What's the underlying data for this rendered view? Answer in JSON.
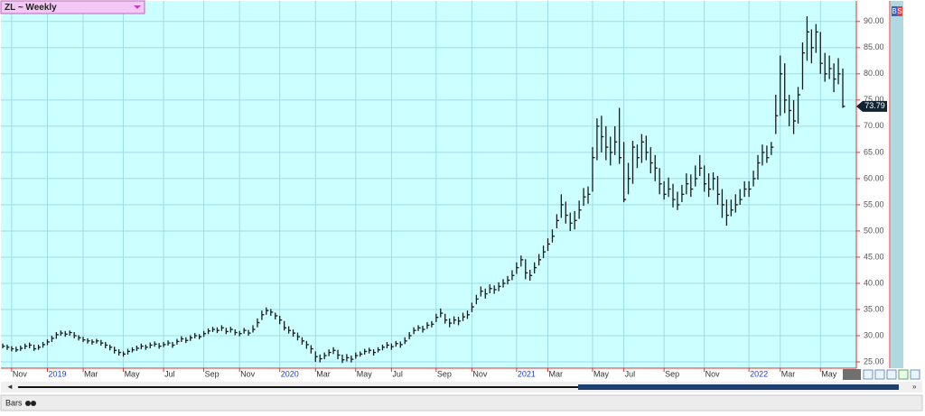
{
  "ui": {
    "symbol": "ZL ~ Weekly",
    "buy": "B",
    "sell": "S",
    "style": "Bars"
  },
  "chart_data": {
    "type": "ohlc",
    "grid": true,
    "color": "#1a1a1a",
    "ylim": [
      23.8,
      94.1
    ],
    "yticks": [
      {
        "value": 25,
        "label": "25.00"
      },
      {
        "value": 30,
        "label": "30.00"
      },
      {
        "value": 35,
        "label": "35.00"
      },
      {
        "value": 40,
        "label": "40.00"
      },
      {
        "value": 45,
        "label": "45.00"
      },
      {
        "value": 50,
        "label": "50.00"
      },
      {
        "value": 55,
        "label": "55.00"
      },
      {
        "value": 60,
        "label": "60.00"
      },
      {
        "value": 65,
        "label": "65.00"
      },
      {
        "value": 70,
        "label": "70.00"
      },
      {
        "value": 75,
        "label": "75.00"
      },
      {
        "value": 80,
        "label": "80.00"
      },
      {
        "value": 85,
        "label": "85.00"
      },
      {
        "value": 90,
        "label": "90.00"
      }
    ],
    "categories": [
      null,
      null,
      "Nov",
      null,
      null,
      null,
      null,
      null,
      null,
      null,
      "2019",
      null,
      null,
      null,
      null,
      null,
      null,
      null,
      "Mar",
      null,
      null,
      null,
      null,
      null,
      null,
      null,
      null,
      "May",
      null,
      null,
      null,
      null,
      null,
      null,
      null,
      null,
      "Jul",
      null,
      null,
      null,
      null,
      null,
      null,
      null,
      null,
      "Sep",
      null,
      null,
      null,
      null,
      null,
      null,
      null,
      "Nov",
      null,
      null,
      null,
      null,
      null,
      null,
      null,
      null,
      "2020",
      null,
      null,
      null,
      null,
      null,
      null,
      null,
      "Mar",
      null,
      null,
      null,
      null,
      null,
      null,
      null,
      null,
      "May",
      null,
      null,
      null,
      null,
      null,
      null,
      null,
      "Jul",
      null,
      null,
      null,
      null,
      null,
      null,
      null,
      null,
      null,
      "Sep",
      null,
      null,
      null,
      null,
      null,
      null,
      null,
      "Nov",
      null,
      null,
      null,
      null,
      null,
      null,
      null,
      null,
      null,
      "2021",
      null,
      null,
      null,
      null,
      null,
      null,
      "Mar",
      null,
      null,
      null,
      null,
      null,
      null,
      null,
      null,
      null,
      "May",
      null,
      null,
      null,
      null,
      null,
      null,
      "Jul",
      null,
      null,
      null,
      null,
      null,
      null,
      null,
      null,
      "Sep",
      null,
      null,
      null,
      null,
      null,
      null,
      null,
      null,
      "Nov",
      null,
      null,
      null,
      null,
      null,
      null,
      null,
      null,
      null,
      "2022",
      null,
      null,
      null,
      null,
      null,
      null,
      "Mar",
      null,
      null,
      null,
      null,
      null,
      null,
      null,
      null,
      "May",
      null,
      null,
      null,
      null,
      null
    ],
    "high": [
      28.5,
      28.3,
      28,
      27.9,
      28.1,
      28.5,
      28.7,
      28.3,
      28.3,
      28.8,
      29.3,
      30,
      30.7,
      31,
      30.9,
      31,
      30.7,
      30.1,
      29.8,
      29.5,
      29.3,
      29.4,
      29.2,
      28.8,
      28.3,
      27.9,
      27.4,
      27,
      27.5,
      27.8,
      28.1,
      28.5,
      28.3,
      28.7,
      28.9,
      28.6,
      28.8,
      29.1,
      28.8,
      29.4,
      29.9,
      29.7,
      30.1,
      30.5,
      30.3,
      30.9,
      31.4,
      31.7,
      31.6,
      32,
      31.5,
      31.7,
      31.2,
      30.9,
      31.5,
      31.1,
      32,
      33.3,
      34.8,
      35.4,
      35.1,
      34.4,
      33.8,
      32.8,
      31.8,
      31.2,
      30.6,
      29.7,
      29,
      28.2,
      27,
      26.4,
      26.8,
      27.4,
      27.8,
      27.3,
      26.4,
      26.5,
      26.2,
      26.8,
      27,
      27.5,
      27.7,
      27.4,
      27.8,
      28.3,
      28.8,
      28.5,
      29,
      28.9,
      29.7,
      30.7,
      31.6,
      32,
      31.9,
      32.6,
      32.8,
      34.2,
      35.2,
      34.2,
      33.3,
      33.7,
      33.6,
      34.4,
      34.8,
      36.3,
      37.8,
      39.4,
      39,
      39.8,
      39.6,
      40.2,
      40.8,
      41.4,
      42.5,
      44,
      45.3,
      44.6,
      42.6,
      44,
      45.6,
      47.2,
      48.6,
      50.3,
      53.2,
      57,
      55.6,
      53.5,
      53.8,
      55.8,
      58.2,
      58.5,
      66,
      71.5,
      72,
      70,
      68,
      70,
      73.5,
      67,
      63,
      67.2,
      66.5,
      68.5,
      68.2,
      66,
      64.5,
      62,
      59.5,
      60.2,
      59,
      57.5,
      58.8,
      61,
      60.8,
      62.5,
      64.5,
      62.5,
      61,
      61.2,
      60.5,
      58,
      56,
      56,
      57,
      58,
      59.5,
      59.5,
      61.5,
      64.5,
      66.5,
      66.3,
      67,
      76,
      83.5,
      82,
      76,
      75,
      77.5,
      86,
      91,
      88.5,
      89.5,
      88,
      84,
      83.5,
      82,
      83,
      81
    ],
    "low": [
      27.6,
      27.3,
      27,
      26.9,
      27.1,
      27.4,
      27.6,
      27.1,
      27.3,
      27.7,
      28.2,
      28.8,
      29.4,
      30,
      29.8,
      30,
      29.5,
      29.1,
      28.8,
      28.5,
      28.3,
      28.5,
      28.1,
      27.6,
      27.2,
      26.6,
      26.2,
      26,
      26.4,
      26.8,
      27.1,
      27.4,
      27.3,
      27.6,
      27.9,
      27.5,
      27.8,
      28.1,
      27.7,
      28.3,
      28.8,
      28.6,
      29,
      29.5,
      29.3,
      29.8,
      30.3,
      30.7,
      30.5,
      30.9,
      30.3,
      30.6,
      30.1,
      29.9,
      30.4,
      30,
      30.6,
      31.6,
      33,
      34,
      33.8,
      33.1,
      32.2,
      31,
      30.4,
      29.8,
      29.1,
      28.3,
      27.5,
      26.6,
      25,
      24.9,
      25.5,
      26.1,
      26.5,
      25.5,
      24.8,
      25.1,
      24.9,
      25.6,
      26,
      26.4,
      26.6,
      26.2,
      26.8,
      27.2,
      27.6,
      27.3,
      27.9,
      27.7,
      28.4,
      29.3,
      30.3,
      30.9,
      30.6,
      31.3,
      31.6,
      32.6,
      33.5,
      32.3,
      31.6,
      32.2,
      32,
      32.8,
      33.2,
      34.5,
      36,
      37.5,
      37.1,
      38.1,
      38,
      38.5,
      39.2,
      39.8,
      40.6,
      41.8,
      43.2,
      40.8,
      40.5,
      41.9,
      43.4,
      44.8,
      46.2,
      47.8,
      50.5,
      52.5,
      51.4,
      50,
      50.3,
      52.3,
      54.8,
      55.2,
      57.5,
      63.5,
      65,
      63.5,
      62.5,
      64.5,
      62.8,
      55.5,
      57,
      59,
      62,
      63,
      63.5,
      61,
      59.5,
      57,
      56,
      56.5,
      54.5,
      54,
      55.5,
      57,
      56.5,
      58.5,
      60.5,
      57.5,
      56.5,
      57.8,
      55,
      52.5,
      51,
      52.8,
      53.5,
      55,
      56.5,
      56.5,
      58.5,
      59.8,
      62.5,
      63,
      64.5,
      68.5,
      72,
      72.5,
      70,
      68.5,
      70.5,
      77,
      82.5,
      82,
      84,
      80,
      78.5,
      79,
      76.5,
      78,
      73.5
    ],
    "close": [
      28,
      27.8,
      27.5,
      27.3,
      27.6,
      28,
      28.2,
      27.5,
      27.8,
      28.3,
      28.8,
      29.5,
      30.2,
      30.5,
      30.3,
      30.6,
      30,
      29.6,
      29.2,
      29,
      28.8,
      29,
      28.6,
      28.2,
      27.8,
      27.2,
      26.8,
      26.5,
      27,
      27.3,
      27.6,
      28,
      27.8,
      28.2,
      28.4,
      28,
      28.3,
      28.6,
      28.2,
      28.9,
      29.4,
      29.1,
      29.6,
      30,
      29.8,
      30.4,
      30.9,
      31.2,
      31,
      31.5,
      30.8,
      31.2,
      30.6,
      30.4,
      31,
      30.5,
      31.2,
      32.5,
      34,
      34.8,
      34.5,
      33.8,
      33,
      31.5,
      31,
      30.5,
      29.8,
      29,
      28.3,
      27.5,
      26,
      25.6,
      26.2,
      26.8,
      27.2,
      26.3,
      25.4,
      25.8,
      25.5,
      26.2,
      26.5,
      27,
      27.2,
      26.8,
      27.3,
      27.8,
      28.2,
      27.9,
      28.5,
      28.3,
      29,
      30,
      31,
      31.5,
      31.2,
      32,
      32.2,
      33.5,
      34.3,
      33,
      32.4,
      33,
      32.8,
      33.6,
      34,
      35.5,
      37,
      38.5,
      38,
      39,
      38.8,
      39.4,
      40,
      40.6,
      41.5,
      43,
      44.5,
      42,
      41.5,
      43,
      44.5,
      46,
      47.5,
      49,
      52,
      55,
      53,
      51.5,
      52,
      54,
      56.5,
      57,
      64,
      70,
      68,
      66,
      65,
      67,
      64,
      56,
      60,
      66,
      64,
      67,
      65,
      63,
      62,
      59,
      57,
      58,
      56,
      55,
      57,
      59,
      58,
      60,
      62,
      59,
      58,
      60,
      57,
      55,
      53,
      54,
      55,
      56,
      58,
      58,
      60,
      63,
      65,
      64,
      66,
      72,
      80,
      75,
      73,
      71,
      76,
      84,
      88,
      85,
      88,
      82,
      80,
      81,
      79,
      80,
      73.79
    ]
  }
}
